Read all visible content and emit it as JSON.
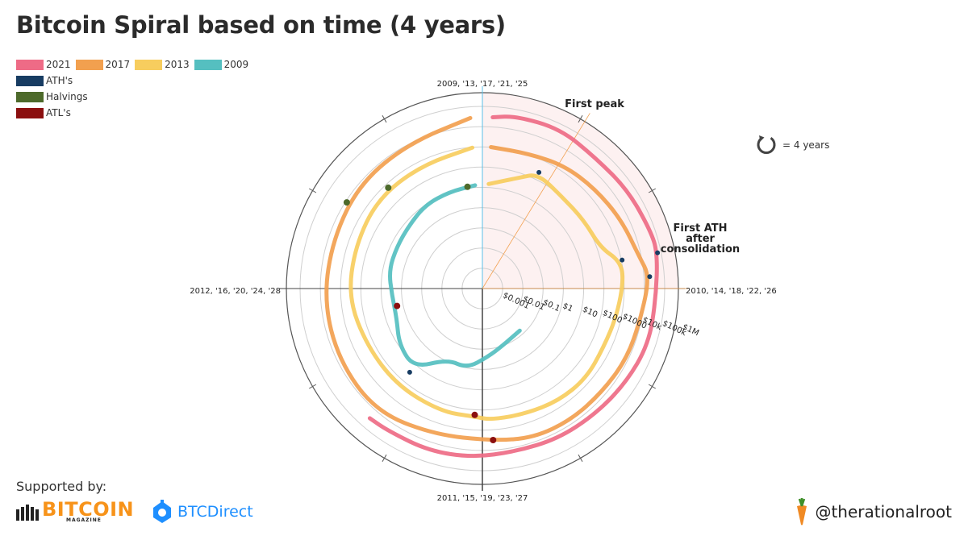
{
  "chart_data": {
    "type": "polar-spiral",
    "title": "Bitcoin Spiral based on time (4 years)",
    "legend": [
      {
        "label": "2021",
        "color": "#ee6b86"
      },
      {
        "label": "2017",
        "color": "#f2a04f"
      },
      {
        "label": "2013",
        "color": "#f7cd5e"
      },
      {
        "label": "2009",
        "color": "#55bfc0"
      },
      {
        "label": "ATH's",
        "color": "#173c62"
      },
      {
        "label": "Halvings",
        "color": "#4d6a2b"
      },
      {
        "label": "ATL's",
        "color": "#8b0f0f"
      }
    ],
    "angle_labels": {
      "top": "2009, '13, '17, '21, '25",
      "right": "2010, '14, '18, '22, '26",
      "bottom": "2011, '15, '19, '23, '27",
      "left": "2012, '16, '20, '24, '28"
    },
    "radial_scale": "log",
    "radial_tick_labels": [
      "$0.001",
      "$0.01",
      "$0.1",
      "$1",
      "$10",
      "$100",
      "$1000",
      "$10k",
      "$100k",
      "$1M"
    ],
    "radial_tick_values": [
      0.001,
      0.01,
      0.1,
      1,
      10,
      100,
      1000,
      10000,
      100000,
      1000000
    ],
    "annotations": [
      "First peak",
      "First ATH after consolidation"
    ],
    "period_note": "= 4 years",
    "series": [
      {
        "name": "2009",
        "color": "#55bfc0",
        "points": [
          [
            "2010-07",
            0.06
          ],
          [
            "2010-10",
            0.1
          ],
          [
            "2010-12",
            0.25
          ],
          [
            "2011-02",
            1
          ],
          [
            "2011-04",
            0.8
          ],
          [
            "2011-06",
            15
          ],
          [
            "2011-08",
            9
          ],
          [
            "2011-10",
            3
          ],
          [
            "2011-12",
            3
          ],
          [
            "2012-02",
            5
          ],
          [
            "2012-04",
            5
          ],
          [
            "2012-06",
            6
          ],
          [
            "2012-08",
            10
          ],
          [
            "2012-10",
            11
          ],
          [
            "2012-12",
            13
          ]
        ]
      },
      {
        "name": "2013",
        "color": "#f7cd5e",
        "points": [
          [
            "2013-01",
            15
          ],
          [
            "2013-03",
            60
          ],
          [
            "2013-04",
            200
          ],
          [
            "2013-06",
            100
          ],
          [
            "2013-08",
            110
          ],
          [
            "2013-10",
            150
          ],
          [
            "2013-11",
            800
          ],
          [
            "2013-12",
            1000
          ],
          [
            "2014-02",
            600
          ],
          [
            "2014-04",
            450
          ],
          [
            "2014-06",
            600
          ],
          [
            "2014-08",
            500
          ],
          [
            "2014-10",
            350
          ],
          [
            "2014-12",
            320
          ],
          [
            "2015-01",
            220
          ],
          [
            "2015-03",
            260
          ],
          [
            "2015-06",
            240
          ],
          [
            "2015-09",
            230
          ],
          [
            "2015-12",
            430
          ],
          [
            "2016-03",
            420
          ],
          [
            "2016-06",
            650
          ],
          [
            "2016-09",
            610
          ],
          [
            "2016-12",
            950
          ]
        ]
      },
      {
        "name": "2017",
        "color": "#f2a04f",
        "points": [
          [
            "2017-01",
            1000
          ],
          [
            "2017-03",
            1100
          ],
          [
            "2017-05",
            2000
          ],
          [
            "2017-07",
            2700
          ],
          [
            "2017-09",
            4500
          ],
          [
            "2017-11",
            8000
          ],
          [
            "2017-12",
            19000
          ],
          [
            "2018-02",
            9000
          ],
          [
            "2018-04",
            8500
          ],
          [
            "2018-06",
            6500
          ],
          [
            "2018-08",
            6800
          ],
          [
            "2018-10",
            6300
          ],
          [
            "2018-12",
            3500
          ],
          [
            "2019-03",
            4000
          ],
          [
            "2019-06",
            11000
          ],
          [
            "2019-09",
            8500
          ],
          [
            "2019-12",
            7200
          ],
          [
            "2020-03",
            6000
          ],
          [
            "2020-06",
            9500
          ],
          [
            "2020-09",
            11000
          ],
          [
            "2020-12",
            28000
          ]
        ]
      },
      {
        "name": "2021",
        "color": "#ee6b86",
        "points": [
          [
            "2021-01",
            30000
          ],
          [
            "2021-02",
            48000
          ],
          [
            "2021-04",
            60000
          ],
          [
            "2021-06",
            35000
          ],
          [
            "2021-08",
            47000
          ],
          [
            "2021-10",
            60000
          ],
          [
            "2021-11",
            67000
          ],
          [
            "2022-01",
            38000
          ],
          [
            "2022-03",
            45000
          ],
          [
            "2022-05",
            30000
          ],
          [
            "2022-07",
            22000
          ],
          [
            "2022-09",
            20000
          ],
          [
            "2022-11",
            16500
          ],
          [
            "2023-01",
            23000
          ],
          [
            "2023-03",
            28000
          ],
          [
            "2023-05",
            27000
          ],
          [
            "2023-06",
            30500
          ]
        ]
      }
    ],
    "markers": {
      "ath": [
        [
          "2013-11",
          1100
        ],
        [
          "2017-12",
          19000
        ],
        [
          "2021-11",
          67000
        ],
        [
          "2013-04",
          240
        ],
        [
          "2011-06",
          30
        ]
      ],
      "halvings": [
        [
          "2012-11-28",
          12
        ],
        [
          "2016-07-09",
          650
        ],
        [
          "2020-05-11",
          8600
        ]
      ],
      "atl": [
        [
          "2011-11",
          2
        ],
        [
          "2015-01",
          180
        ],
        [
          "2018-12",
          3200
        ]
      ]
    }
  },
  "sponsors": {
    "label": "Supported by:",
    "bitcoin_magazine": "BITCOIN",
    "bitcoin_magazine_sub": "MAGAZINE",
    "btcdirect": "BTCDirect"
  },
  "handle": "@therationalroot"
}
